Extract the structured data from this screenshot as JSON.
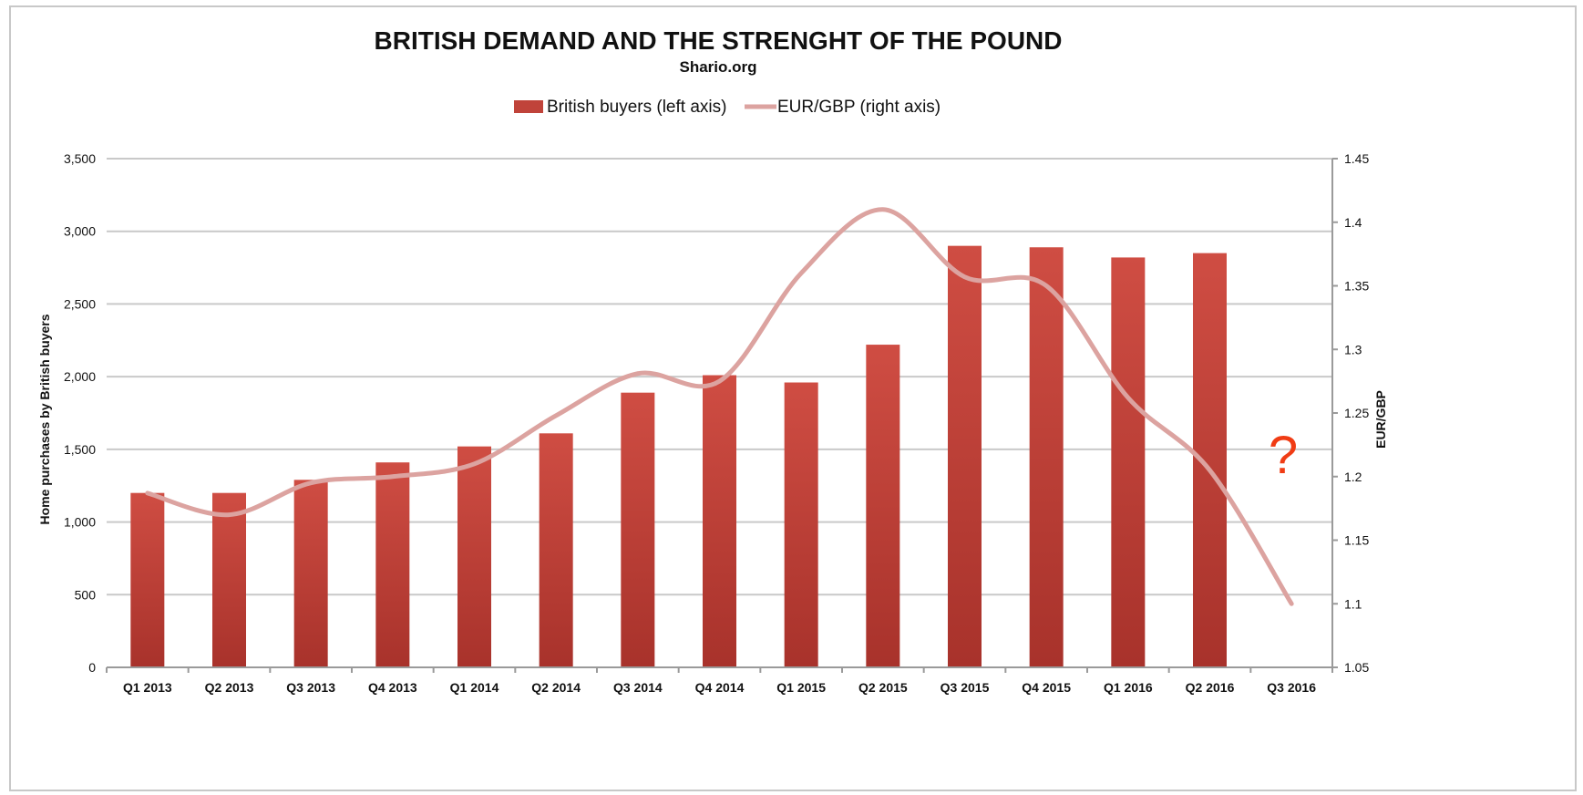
{
  "chart_data": {
    "type": "bar",
    "title": "BRITISH DEMAND AND THE STRENGHT OF THE POUND",
    "subtitle": "Shario.org",
    "categories": [
      "Q1 2013",
      "Q2 2013",
      "Q3 2013",
      "Q4 2013",
      "Q1 2014",
      "Q2 2014",
      "Q3 2014",
      "Q4 2014",
      "Q1 2015",
      "Q2 2015",
      "Q3 2015",
      "Q4 2015",
      "Q1 2016",
      "Q2 2016",
      "Q3 2016"
    ],
    "series": [
      {
        "name": "British buyers (left axis)",
        "type": "bar",
        "axis": "left",
        "color": "#c0433a",
        "values": [
          1200,
          1200,
          1290,
          1410,
          1520,
          1610,
          1890,
          2010,
          1960,
          2220,
          2900,
          2890,
          2820,
          2850,
          null
        ]
      },
      {
        "name": "EUR/GBP (right axis)",
        "type": "line",
        "axis": "right",
        "color": "#dca3a0",
        "values": [
          1.187,
          1.17,
          1.195,
          1.2,
          1.21,
          1.248,
          1.281,
          1.275,
          1.36,
          1.41,
          1.357,
          1.35,
          1.262,
          1.205,
          1.1
        ]
      }
    ],
    "y_left": {
      "label": "Home purchases by British buyers",
      "min": 0,
      "max": 3500,
      "ticks": [
        "0",
        "500",
        "1,000",
        "1,500",
        "2,000",
        "2,500",
        "3,000",
        "3,500"
      ]
    },
    "y_right": {
      "label": "EUR/GBP",
      "min": 1.05,
      "max": 1.45,
      "ticks": [
        "1.05",
        "1.1",
        "1.15",
        "1.2",
        "1.25",
        "1.3",
        "1.35",
        "1.4",
        "1.45"
      ]
    },
    "grid": true,
    "legend_position": "top-center",
    "annotation": {
      "text": "?",
      "category": "Q3 2016",
      "color": "#f03c14"
    }
  }
}
